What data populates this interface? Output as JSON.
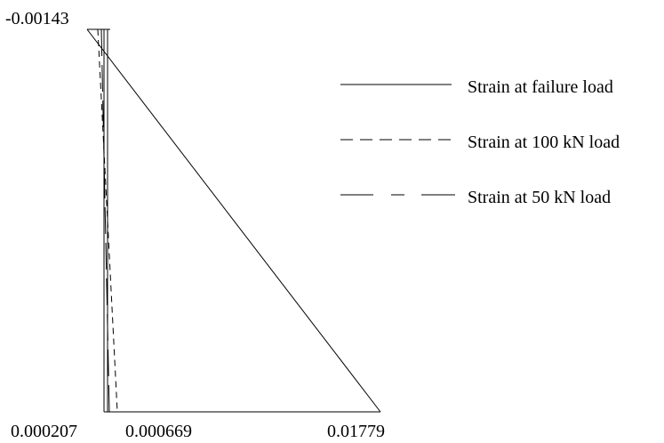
{
  "labels": {
    "top_strain": "-0.00143",
    "bottom_strain_1": "0.000207",
    "bottom_strain_2": "0.000669",
    "bottom_strain_3": "0.01779"
  },
  "legend": [
    {
      "name": "Strain at failure load",
      "dash": "solid"
    },
    {
      "name": "Strain at 100 kN load",
      "dash": "dashed"
    },
    {
      "name": "Strain at 50 kN load",
      "dash": "long-dash"
    }
  ],
  "colors": {
    "line": "#000000",
    "background": "#ffffff"
  }
}
